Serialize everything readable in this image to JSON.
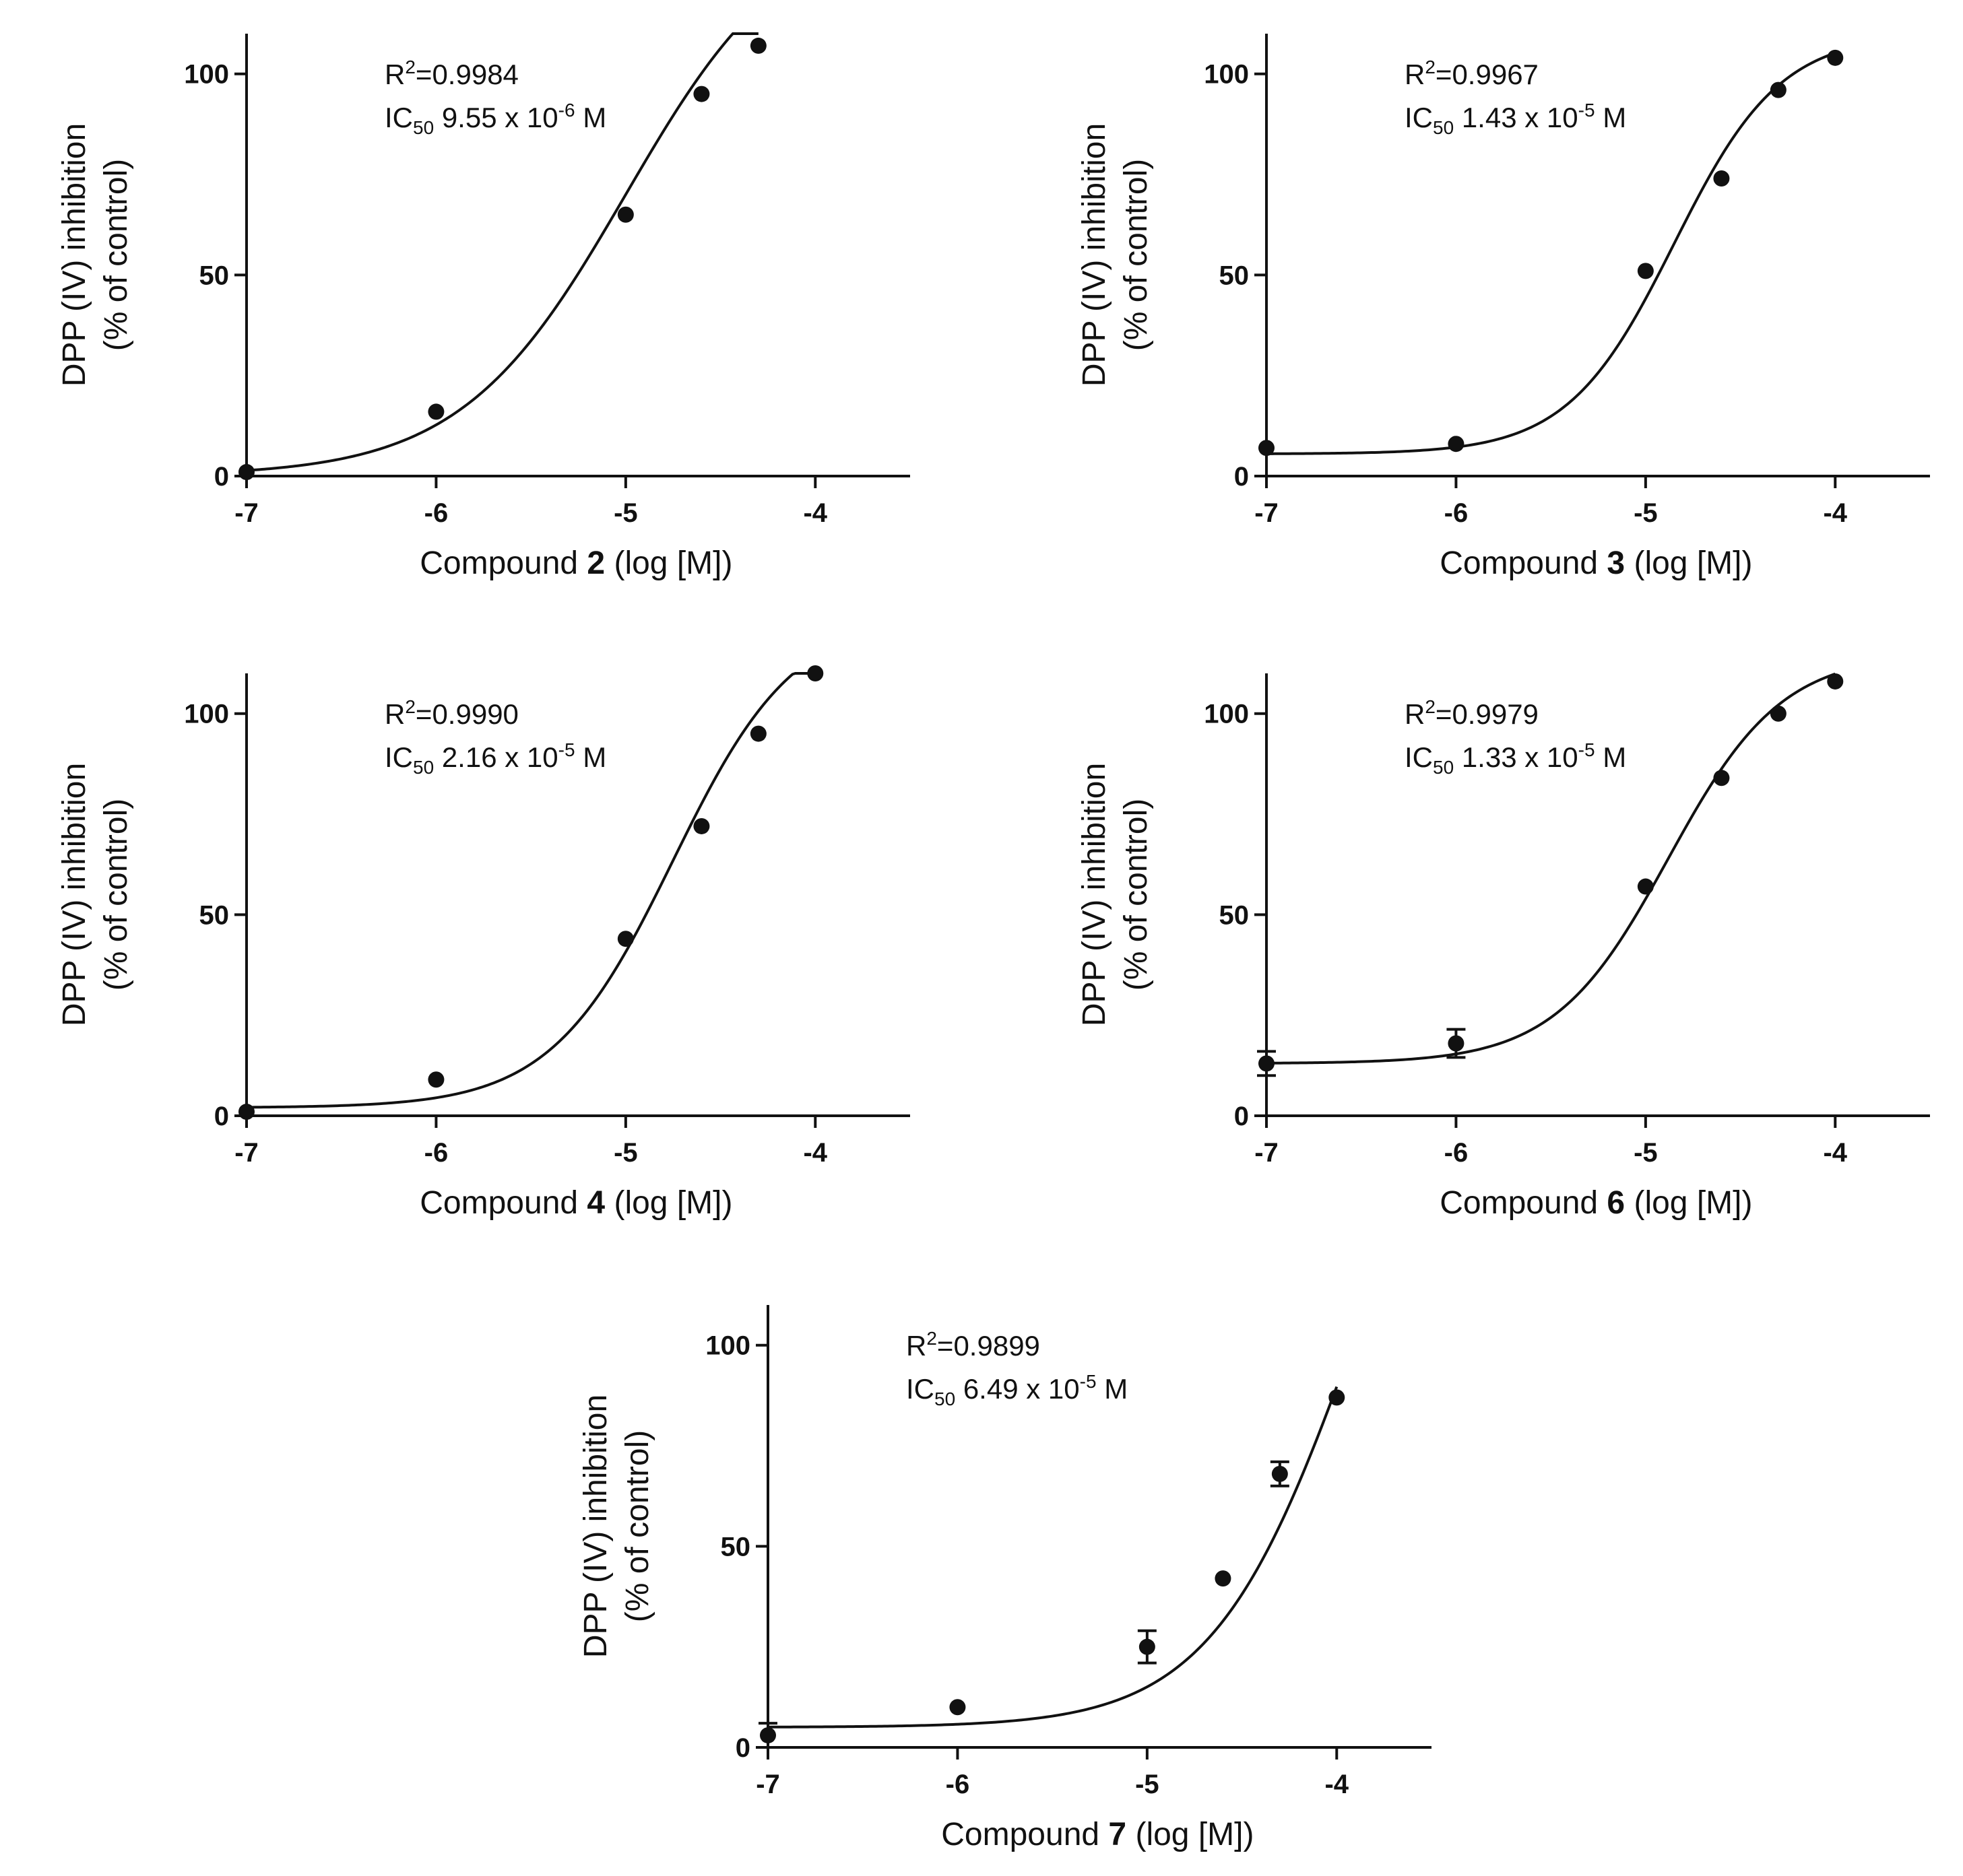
{
  "chart_data": [
    {
      "type": "scatter",
      "compound": "2",
      "xlabel_prefix": "Compound ",
      "xlabel_suffix": " (log [M])",
      "ylabel_line1": "DPP (IV) inhibition",
      "ylabel_line2": "(% of control)",
      "xlim": [
        -7,
        -3.5
      ],
      "ylim": [
        0,
        110
      ],
      "xticks": [
        -7,
        -6,
        -5,
        -4
      ],
      "xtick_labels": [
        "-7",
        "-6",
        "-5",
        "-4"
      ],
      "yticks": [
        0,
        50,
        100
      ],
      "ytick_labels": [
        "0",
        "50",
        "100"
      ],
      "r2_label": "R",
      "r2_sup": "2",
      "r2_value": "=0.9984",
      "ic50_label": "IC",
      "ic50_sub": "50",
      "ic50_mantissa": " 9.55 x 10",
      "ic50_exp": "-6",
      "ic50_unit": " M",
      "points": [
        {
          "x": -7,
          "y": 1
        },
        {
          "x": -6,
          "y": 16
        },
        {
          "x": -5,
          "y": 65
        },
        {
          "x": -4.6,
          "y": 95
        },
        {
          "x": -4.3,
          "y": 107
        }
      ],
      "fit": {
        "bottom": 0,
        "top": 140,
        "logEC50": -5.0,
        "hill": 1.0
      }
    },
    {
      "type": "scatter",
      "compound": "3",
      "xlabel_prefix": "Compound ",
      "xlabel_suffix": " (log [M])",
      "ylabel_line1": "DPP (IV) inhibition",
      "ylabel_line2": "(% of control)",
      "xlim": [
        -7,
        -3.5
      ],
      "ylim": [
        0,
        110
      ],
      "xticks": [
        -7,
        -6,
        -5,
        -4
      ],
      "xtick_labels": [
        "-7",
        "-6",
        "-5",
        "-4"
      ],
      "yticks": [
        0,
        50,
        100
      ],
      "ytick_labels": [
        "0",
        "50",
        "100"
      ],
      "r2_label": "R",
      "r2_sup": "2",
      "r2_value": "=0.9967",
      "ic50_label": "IC",
      "ic50_sub": "50",
      "ic50_mantissa": " 1.43 x 10",
      "ic50_exp": "-5",
      "ic50_unit": " M",
      "points": [
        {
          "x": -7,
          "y": 7
        },
        {
          "x": -6,
          "y": 8
        },
        {
          "x": -5,
          "y": 51
        },
        {
          "x": -4.6,
          "y": 74
        },
        {
          "x": -4.3,
          "y": 96
        },
        {
          "x": -4,
          "y": 104
        }
      ],
      "fit": {
        "bottom": 5.5,
        "top": 110,
        "logEC50": -4.85,
        "hill": 1.55
      }
    },
    {
      "type": "scatter",
      "compound": "4",
      "xlabel_prefix": "Compound ",
      "xlabel_suffix": " (log [M])",
      "ylabel_line1": "DPP (IV) inhibition",
      "ylabel_line2": "(% of control)",
      "xlim": [
        -7,
        -3.5
      ],
      "ylim": [
        0,
        110
      ],
      "xticks": [
        -7,
        -6,
        -5,
        -4
      ],
      "xtick_labels": [
        "-7",
        "-6",
        "-5",
        "-4"
      ],
      "yticks": [
        0,
        50,
        100
      ],
      "ytick_labels": [
        "0",
        "50",
        "100"
      ],
      "r2_label": "R",
      "r2_sup": "2",
      "r2_value": "=0.9990",
      "ic50_label": "IC",
      "ic50_sub": "50",
      "ic50_mantissa": " 2.16 x 10",
      "ic50_exp": "-5",
      "ic50_unit": " M",
      "points": [
        {
          "x": -7,
          "y": 1
        },
        {
          "x": -6,
          "y": 9
        },
        {
          "x": -5,
          "y": 44
        },
        {
          "x": -4.6,
          "y": 72
        },
        {
          "x": -4.3,
          "y": 95
        },
        {
          "x": -4,
          "y": 110
        }
      ],
      "fit": {
        "bottom": 2,
        "top": 125,
        "logEC50": -4.75,
        "hill": 1.35
      }
    },
    {
      "type": "scatter",
      "compound": "6",
      "xlabel_prefix": "Compound ",
      "xlabel_suffix": " (log [M])",
      "ylabel_line1": "DPP (IV) inhibition",
      "ylabel_line2": "(% of control)",
      "xlim": [
        -7,
        -3.5
      ],
      "ylim": [
        0,
        110
      ],
      "xticks": [
        -7,
        -6,
        -5,
        -4
      ],
      "xtick_labels": [
        "-7",
        "-6",
        "-5",
        "-4"
      ],
      "yticks": [
        0,
        50,
        100
      ],
      "ytick_labels": [
        "0",
        "50",
        "100"
      ],
      "r2_label": "R",
      "r2_sup": "2",
      "r2_value": "=0.9979",
      "ic50_label": "IC",
      "ic50_sub": "50",
      "ic50_mantissa": " 1.33 x 10",
      "ic50_exp": "-5",
      "ic50_unit": " M",
      "points": [
        {
          "x": -7,
          "y": 13,
          "err": 3
        },
        {
          "x": -6,
          "y": 18,
          "err": 3.5
        },
        {
          "x": -5,
          "y": 57
        },
        {
          "x": -4.6,
          "y": 84
        },
        {
          "x": -4.3,
          "y": 100
        },
        {
          "x": -4,
          "y": 108
        }
      ],
      "fit": {
        "bottom": 13,
        "top": 115,
        "logEC50": -4.88,
        "hill": 1.45
      }
    },
    {
      "type": "scatter",
      "compound": "7",
      "xlabel_prefix": "Compound ",
      "xlabel_suffix": " (log [M])",
      "ylabel_line1": "DPP (IV) inhibition",
      "ylabel_line2": "(% of control)",
      "xlim": [
        -7,
        -3.5
      ],
      "ylim": [
        0,
        110
      ],
      "xticks": [
        -7,
        -6,
        -5,
        -4
      ],
      "xtick_labels": [
        "-7",
        "-6",
        "-5",
        "-4"
      ],
      "yticks": [
        0,
        50,
        100
      ],
      "ytick_labels": [
        "0",
        "50",
        "100"
      ],
      "r2_label": "R",
      "r2_sup": "2",
      "r2_value": "=0.9899",
      "ic50_label": "IC",
      "ic50_sub": "50",
      "ic50_mantissa": " 6.49 x 10",
      "ic50_exp": "-5",
      "ic50_unit": " M",
      "points": [
        {
          "x": -7,
          "y": 3,
          "err": 3
        },
        {
          "x": -6,
          "y": 10
        },
        {
          "x": -5,
          "y": 25,
          "err": 4
        },
        {
          "x": -4.6,
          "y": 42
        },
        {
          "x": -4.3,
          "y": 68,
          "err": 3
        },
        {
          "x": -4,
          "y": 87
        }
      ],
      "fit": {
        "bottom": 5,
        "top": 200,
        "logEC50": -3.9,
        "hill": 1.15
      }
    }
  ]
}
